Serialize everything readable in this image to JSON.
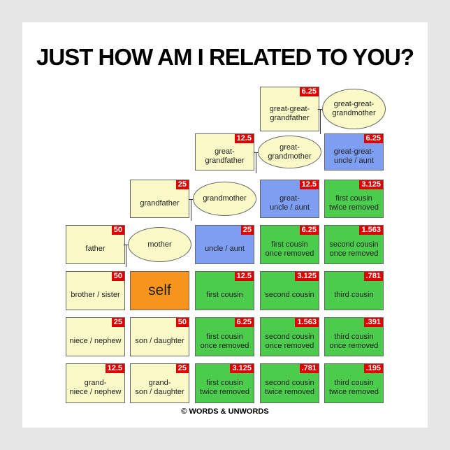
{
  "title": "JUST HOW AM I RELATED TO YOU?",
  "footer": "© WORDS & UNWORDS",
  "colors": {
    "ancestor": "#fafac8",
    "uncle": "#7e9ef2",
    "cousin": "#4ccc4c",
    "self": "#f7941d",
    "badge": "#e00000"
  },
  "rows": [
    [
      null,
      null,
      null,
      {
        "label": "great-great-\ngrandfather",
        "badge": "6.25",
        "type": "ancestor"
      },
      {
        "label": "great-great-\ngrandmother",
        "type": "ancestor",
        "shape": "ellipse"
      }
    ],
    [
      null,
      null,
      {
        "label": "great-\ngrandfather",
        "badge": "12.5",
        "type": "ancestor"
      },
      {
        "label": "great-\ngrandmother",
        "type": "ancestor",
        "shape": "ellipse"
      },
      {
        "label": "great-great-\nuncle / aunt",
        "badge": "6.25",
        "type": "uncle"
      }
    ],
    [
      null,
      {
        "label": "grandfather",
        "badge": "25",
        "type": "ancestor"
      },
      {
        "label": "grandmother",
        "type": "ancestor",
        "shape": "ellipse"
      },
      {
        "label": "great-\nuncle / aunt",
        "badge": "12.5",
        "type": "uncle"
      },
      {
        "label": "first cousin\ntwice removed",
        "badge": "3.125",
        "type": "cousin"
      }
    ],
    [
      {
        "label": "father",
        "badge": "50",
        "type": "ancestor"
      },
      {
        "label": "mother",
        "type": "ancestor",
        "shape": "ellipse"
      },
      {
        "label": "uncle / aunt",
        "badge": "25",
        "type": "uncle"
      },
      {
        "label": "first cousin\nonce removed",
        "badge": "6.25",
        "type": "cousin"
      },
      {
        "label": "second cousin\nonce removed",
        "badge": "1.563",
        "type": "cousin"
      }
    ],
    [
      {
        "label": "brother / sister",
        "badge": "50",
        "type": "ancestor"
      },
      {
        "label": "self",
        "type": "self"
      },
      {
        "label": "first cousin",
        "badge": "12.5",
        "type": "cousin"
      },
      {
        "label": "second cousin",
        "badge": "3.125",
        "type": "cousin"
      },
      {
        "label": "third cousin",
        "badge": ".781",
        "type": "cousin"
      }
    ],
    [
      {
        "label": "niece / nephew",
        "badge": "25",
        "type": "ancestor"
      },
      {
        "label": "son / daughter",
        "badge": "50",
        "type": "ancestor"
      },
      {
        "label": "first cousin\nonce removed",
        "badge": "6.25",
        "type": "cousin"
      },
      {
        "label": "second cousin\nonce removed",
        "badge": "1.563",
        "type": "cousin"
      },
      {
        "label": "third cousin\nonce removed",
        "badge": ".391",
        "type": "cousin"
      }
    ],
    [
      {
        "label": "grand-\nniece / nephew",
        "badge": "12.5",
        "type": "ancestor"
      },
      {
        "label": "grand-\nson / daughter",
        "badge": "25",
        "type": "ancestor"
      },
      {
        "label": "first cousin\ntwice removed",
        "badge": "3.125",
        "type": "cousin"
      },
      {
        "label": "second cousin\ntwice removed",
        "badge": ".781",
        "type": "cousin"
      },
      {
        "label": "third cousin\ntwice removed",
        "badge": ".195",
        "type": "cousin"
      }
    ]
  ]
}
